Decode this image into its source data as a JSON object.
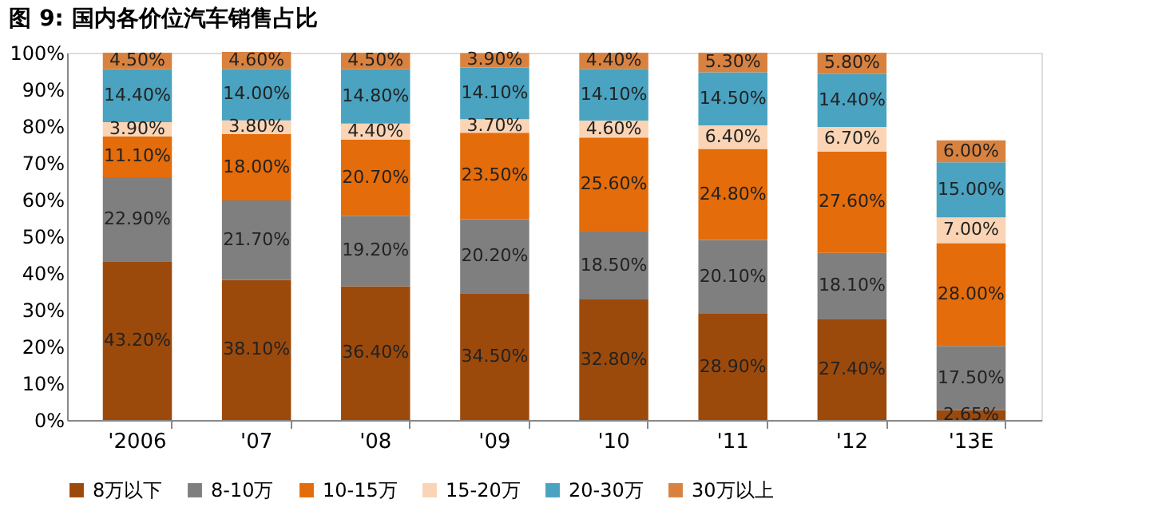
{
  "chart_data": {
    "type": "bar",
    "stacked": true,
    "title": "图 9:      国内各价位汽车销售占比",
    "categories": [
      "'2006",
      "'07",
      "'08",
      "'09",
      "'10",
      "'11",
      "'12",
      "'13E"
    ],
    "series": [
      {
        "name": "8万以下",
        "color": "#9c4a0c",
        "values": [
          43.2,
          38.1,
          36.4,
          34.5,
          32.8,
          28.9,
          27.4,
          2.65
        ],
        "value_labels": [
          "43.20%",
          "38.10%",
          "36.40%",
          "34.50%",
          "32.80%",
          "28.90%",
          "27.40%",
          "2.65%"
        ]
      },
      {
        "name": "8-10万",
        "color": "#7f7f7f",
        "values": [
          22.9,
          21.7,
          19.2,
          20.2,
          18.5,
          20.1,
          18.1,
          17.5
        ],
        "value_labels": [
          "22.90%",
          "21.70%",
          "19.20%",
          "20.20%",
          "18.50%",
          "20.10%",
          "18.10%",
          "17.50%"
        ]
      },
      {
        "name": "10-15万",
        "color": "#e46c0a",
        "values": [
          11.1,
          18.0,
          20.7,
          23.5,
          25.6,
          24.8,
          27.6,
          28.0
        ],
        "value_labels": [
          "11.10%",
          "18.00%",
          "20.70%",
          "23.50%",
          "25.60%",
          "24.80%",
          "27.60%",
          "28.00%"
        ]
      },
      {
        "name": "15-20万",
        "color": "#fad4b4",
        "values": [
          3.9,
          3.8,
          4.4,
          3.7,
          4.6,
          6.4,
          6.7,
          7.0
        ],
        "value_labels": [
          "3.90%",
          "3.80%",
          "4.40%",
          "3.70%",
          "4.60%",
          "6.40%",
          "6.70%",
          "7.00%"
        ]
      },
      {
        "name": "20-30万",
        "color": "#4aa3c0",
        "values": [
          14.4,
          14.0,
          14.8,
          14.1,
          14.1,
          14.5,
          14.4,
          15.0
        ],
        "value_labels": [
          "14.40%",
          "14.00%",
          "14.80%",
          "14.10%",
          "14.10%",
          "14.50%",
          "14.40%",
          "15.00%"
        ]
      },
      {
        "name": "30万以上",
        "color": "#d9823f",
        "values": [
          4.5,
          4.6,
          4.5,
          3.9,
          4.4,
          5.3,
          5.8,
          6.0
        ],
        "value_labels": [
          "4.50%",
          "4.60%",
          "4.50%",
          "3.90%",
          "4.40%",
          "5.30%",
          "5.80%",
          "6.00%"
        ]
      }
    ],
    "ylim": [
      0,
      100
    ],
    "yticks": [
      {
        "value": 0,
        "label": "0%"
      },
      {
        "value": 10,
        "label": "10%"
      },
      {
        "value": 20,
        "label": "20%"
      },
      {
        "value": 30,
        "label": "30%"
      },
      {
        "value": 40,
        "label": "40%"
      },
      {
        "value": 50,
        "label": "50%"
      },
      {
        "value": 60,
        "label": "60%"
      },
      {
        "value": 70,
        "label": "70%"
      },
      {
        "value": 80,
        "label": "80%"
      },
      {
        "value": 90,
        "label": "90%"
      },
      {
        "value": 100,
        "label": "100%"
      }
    ],
    "grid": false,
    "legend": "bottom"
  }
}
